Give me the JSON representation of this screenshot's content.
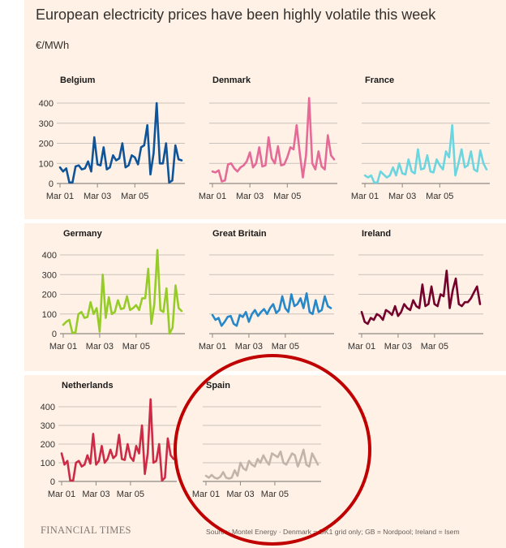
{
  "page": {
    "title": "European electricity prices have been highly volatile this week",
    "unit": "€/MWh",
    "logo": "FINANCIAL TIMES",
    "source": "Source: Montel Energy · Denmark = DK1 grid only; GB = Nordpool; Ireland = Isem"
  },
  "colors": {
    "background": "#fff1e5",
    "highlight_circle": "#c00000"
  },
  "highlight": {
    "target_chart": "Spain",
    "shape": "circle"
  },
  "chart_data": [
    {
      "type": "line",
      "title": "Belgium",
      "color": "#0f5499",
      "x_ticks": [
        "Mar 01",
        "Mar 03",
        "Mar 05"
      ],
      "y_ticks": [
        400,
        300,
        200,
        100,
        0
      ],
      "ylim": [
        0,
        430
      ],
      "x": [
        0,
        4,
        8,
        12,
        16,
        20,
        24,
        28,
        32,
        36,
        40,
        44,
        48,
        52,
        56,
        60,
        64,
        68,
        72,
        76,
        80,
        84,
        88,
        92,
        96,
        100,
        104,
        108,
        112,
        116,
        120,
        124,
        128,
        132,
        136,
        140,
        144,
        148,
        152,
        156
      ],
      "values": [
        80,
        60,
        75,
        5,
        5,
        85,
        90,
        70,
        75,
        110,
        60,
        230,
        95,
        90,
        180,
        70,
        80,
        140,
        115,
        125,
        200,
        80,
        90,
        140,
        130,
        95,
        180,
        190,
        290,
        45,
        150,
        400,
        100,
        100,
        200,
        5,
        15,
        190,
        120,
        115
      ]
    },
    {
      "type": "line",
      "title": "Denmark",
      "color": "#e56a98",
      "x_ticks": [
        "Mar 01",
        "Mar 03",
        "Mar 05"
      ],
      "y_ticks": [],
      "ylim": [
        0,
        430
      ],
      "x": [
        0,
        4,
        8,
        12,
        16,
        20,
        24,
        28,
        32,
        36,
        40,
        44,
        48,
        52,
        56,
        60,
        64,
        68,
        72,
        76,
        80,
        84,
        88,
        92,
        96,
        100,
        104,
        108,
        112,
        116,
        120,
        124,
        128,
        132,
        136,
        140,
        144,
        148,
        152,
        156
      ],
      "values": [
        60,
        55,
        65,
        10,
        15,
        95,
        100,
        75,
        60,
        80,
        90,
        110,
        155,
        80,
        100,
        180,
        85,
        90,
        230,
        125,
        100,
        185,
        90,
        95,
        130,
        180,
        170,
        290,
        150,
        30,
        140,
        425,
        100,
        70,
        160,
        85,
        70,
        240,
        140,
        120
      ]
    },
    {
      "type": "line",
      "title": "France",
      "color": "#6bd5e0",
      "x_ticks": [
        "Mar 01",
        "Mar 03",
        "Mar 05"
      ],
      "y_ticks": [],
      "ylim": [
        0,
        430
      ],
      "x": [
        0,
        4,
        8,
        12,
        16,
        20,
        24,
        28,
        32,
        36,
        40,
        44,
        48,
        52,
        56,
        60,
        64,
        68,
        72,
        76,
        80,
        84,
        88,
        92,
        96,
        100,
        104,
        108,
        112,
        116,
        120,
        124,
        128,
        132,
        136,
        140,
        144,
        148,
        152,
        156
      ],
      "values": [
        40,
        30,
        40,
        5,
        5,
        60,
        45,
        30,
        40,
        80,
        40,
        100,
        50,
        45,
        120,
        60,
        50,
        170,
        70,
        75,
        140,
        60,
        55,
        120,
        90,
        70,
        160,
        130,
        290,
        40,
        100,
        170,
        80,
        90,
        160,
        70,
        60,
        165,
        100,
        70
      ]
    },
    {
      "type": "line",
      "title": "Germany",
      "color": "#96cc28",
      "x_ticks": [
        "Mar 01",
        "Mar 03",
        "Mar 05"
      ],
      "y_ticks": [
        400,
        300,
        200,
        100,
        0
      ],
      "ylim": [
        0,
        430
      ],
      "x": [
        0,
        4,
        8,
        12,
        16,
        20,
        24,
        28,
        32,
        36,
        40,
        44,
        48,
        52,
        56,
        60,
        64,
        68,
        72,
        76,
        80,
        84,
        88,
        92,
        96,
        100,
        104,
        108,
        112,
        116,
        120,
        124,
        128,
        132,
        136,
        140,
        144,
        148,
        152,
        156
      ],
      "values": [
        45,
        60,
        70,
        5,
        5,
        100,
        110,
        80,
        85,
        160,
        100,
        130,
        10,
        300,
        80,
        185,
        100,
        110,
        170,
        125,
        130,
        190,
        120,
        130,
        145,
        120,
        180,
        180,
        330,
        50,
        150,
        425,
        120,
        110,
        230,
        0,
        30,
        245,
        130,
        115
      ]
    },
    {
      "type": "line",
      "title": "Great Britain",
      "color": "#2687c9",
      "x_ticks": [
        "Mar 01",
        "Mar 03",
        "Mar 05"
      ],
      "y_ticks": [],
      "ylim": [
        0,
        430
      ],
      "x": [
        0,
        4,
        8,
        12,
        16,
        20,
        24,
        28,
        32,
        36,
        40,
        44,
        48,
        52,
        56,
        60,
        64,
        68,
        72,
        76,
        80,
        84,
        88,
        92,
        96,
        100,
        104,
        108,
        112,
        116,
        120,
        124,
        128,
        132,
        136,
        140,
        144,
        148,
        152,
        156
      ],
      "values": [
        95,
        70,
        80,
        40,
        60,
        85,
        90,
        50,
        40,
        95,
        85,
        110,
        60,
        100,
        120,
        90,
        110,
        125,
        100,
        130,
        150,
        105,
        120,
        190,
        130,
        110,
        200,
        140,
        150,
        180,
        130,
        205,
        110,
        100,
        170,
        110,
        120,
        190,
        140,
        130
      ]
    },
    {
      "type": "line",
      "title": "Ireland",
      "color": "#74002c",
      "x_ticks": [
        "Mar 01",
        "Mar 03",
        "Mar 05"
      ],
      "y_ticks": [],
      "ylim": [
        0,
        430
      ],
      "x": [
        0,
        4,
        8,
        12,
        16,
        20,
        24,
        28,
        32,
        36,
        40,
        44,
        48,
        52,
        56,
        60,
        64,
        68,
        72,
        76,
        80,
        84,
        88,
        92,
        96,
        100,
        104,
        108,
        112,
        116,
        120,
        124,
        128,
        132,
        136,
        140,
        144,
        148,
        152,
        156
      ],
      "values": [
        110,
        60,
        50,
        80,
        70,
        100,
        90,
        70,
        120,
        110,
        95,
        140,
        90,
        110,
        150,
        130,
        120,
        170,
        140,
        130,
        250,
        140,
        150,
        240,
        150,
        140,
        200,
        190,
        320,
        130,
        220,
        280,
        150,
        140,
        160,
        160,
        180,
        210,
        240,
        150
      ]
    },
    {
      "type": "line",
      "title": "Netherlands",
      "color": "#cc2a45",
      "x_ticks": [
        "Mar 01",
        "Mar 03",
        "Mar 05"
      ],
      "y_ticks": [
        400,
        300,
        200,
        100,
        0
      ],
      "ylim": [
        0,
        430
      ],
      "x": [
        0,
        4,
        8,
        12,
        16,
        20,
        24,
        28,
        32,
        36,
        40,
        44,
        48,
        52,
        56,
        60,
        64,
        68,
        72,
        76,
        80,
        84,
        88,
        92,
        96,
        100,
        104,
        108,
        112,
        116,
        120,
        124,
        128,
        132,
        136,
        140,
        144,
        148,
        152,
        156
      ],
      "values": [
        150,
        90,
        110,
        5,
        5,
        100,
        110,
        80,
        90,
        140,
        95,
        255,
        90,
        110,
        190,
        100,
        120,
        170,
        125,
        140,
        250,
        120,
        115,
        200,
        130,
        110,
        190,
        150,
        300,
        40,
        150,
        440,
        100,
        110,
        200,
        5,
        20,
        230,
        140,
        120
      ]
    },
    {
      "type": "line",
      "title": "Spain",
      "color": "#c2b4a9",
      "x_ticks": [
        "Mar 01",
        "Mar 03",
        "Mar 05"
      ],
      "y_ticks": [],
      "ylim": [
        0,
        430
      ],
      "x": [
        0,
        4,
        8,
        12,
        16,
        20,
        24,
        28,
        32,
        36,
        40,
        44,
        48,
        52,
        56,
        60,
        64,
        68,
        72,
        76,
        80,
        84,
        88,
        92,
        96,
        100,
        104,
        108,
        112,
        116,
        120,
        124,
        128,
        132,
        136,
        140,
        144,
        148,
        152,
        156
      ],
      "values": [
        30,
        20,
        35,
        20,
        15,
        25,
        50,
        20,
        15,
        20,
        60,
        30,
        100,
        70,
        60,
        110,
        90,
        80,
        120,
        100,
        140,
        110,
        90,
        150,
        140,
        130,
        160,
        100,
        90,
        120,
        150,
        140,
        80,
        120,
        170,
        90,
        80,
        150,
        120,
        90
      ]
    }
  ]
}
